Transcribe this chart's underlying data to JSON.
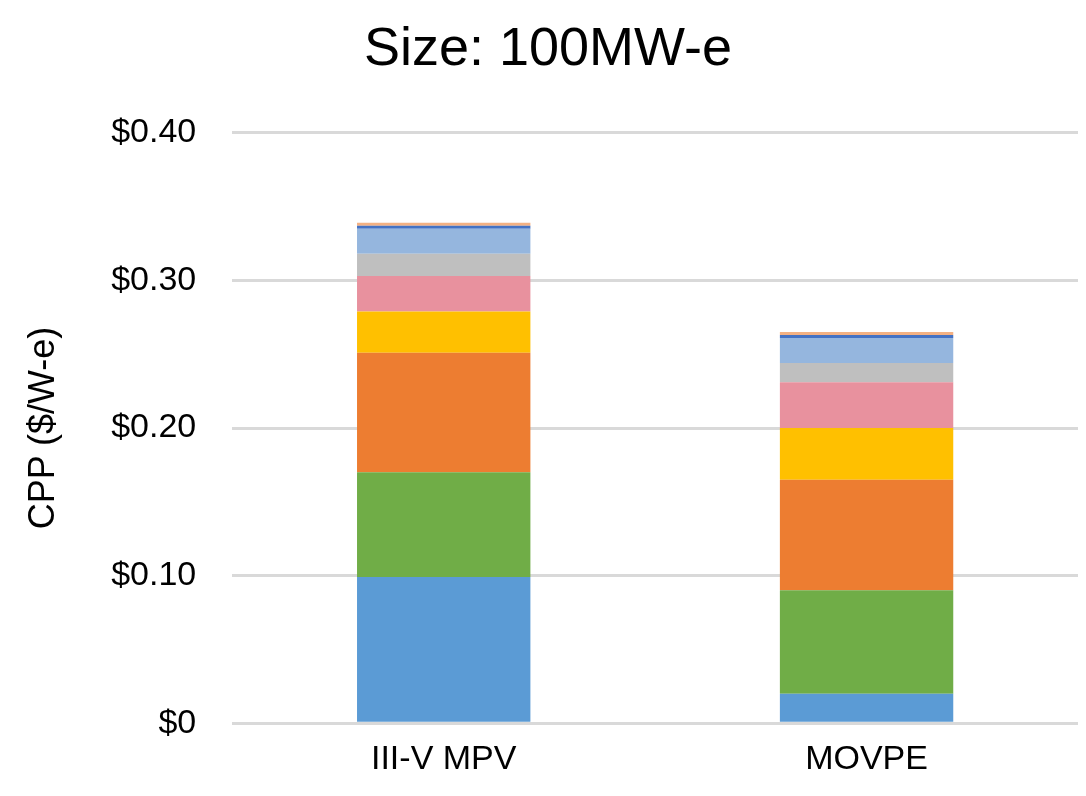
{
  "chart_data": {
    "type": "bar",
    "title": "Size: 100MW-e",
    "ylabel": "CPP ($/W-e)",
    "categories": [
      "III-V MPV",
      "MOVPE"
    ],
    "stacked": true,
    "series": [
      {
        "color": "#5b9bd5",
        "values": [
          0.099,
          0.02
        ]
      },
      {
        "color": "#70ad47",
        "values": [
          0.071,
          0.07
        ]
      },
      {
        "color": "#ed7d31",
        "values": [
          0.081,
          0.075
        ]
      },
      {
        "color": "#ffc000",
        "values": [
          0.028,
          0.035
        ]
      },
      {
        "color": "#e8919e",
        "values": [
          0.024,
          0.031
        ]
      },
      {
        "color": "#bfbfbf",
        "values": [
          0.015,
          0.013
        ]
      },
      {
        "color": "#95b6de",
        "values": [
          0.017,
          0.017
        ]
      },
      {
        "color": "#4472c4",
        "values": [
          0.002,
          0.002
        ]
      },
      {
        "color": "#f4b183",
        "values": [
          0.002,
          0.002
        ]
      }
    ],
    "ylim": [
      0,
      0.4
    ],
    "yticks": [
      {
        "value": 0,
        "label": "$0"
      },
      {
        "value": 0.1,
        "label": "$0.10"
      },
      {
        "value": 0.2,
        "label": "$0.20"
      },
      {
        "value": 0.3,
        "label": "$0.30"
      },
      {
        "value": 0.4,
        "label": "$0.40"
      }
    ],
    "grid": "y",
    "legend": false
  }
}
